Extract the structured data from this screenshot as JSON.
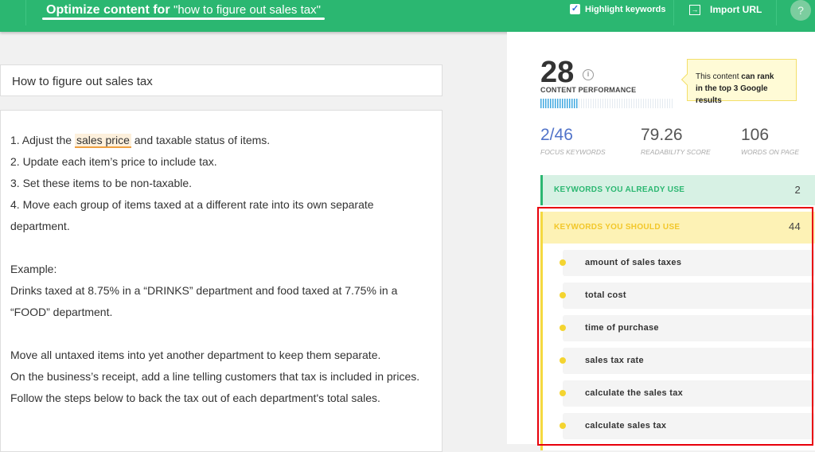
{
  "header": {
    "title_bold": "Optimize content for",
    "query": "\"how to figure out sales tax\"",
    "highlight_label": "Highlight keywords",
    "highlight_checked": true,
    "import_label": "Import URL",
    "help": "?"
  },
  "keyword": "How to figure out sales tax",
  "editor": {
    "lines": [
      {
        "pre": "1. Adjust the ",
        "mark": "sales price",
        "post": " and taxable status of items."
      },
      {
        "pre": "2. Update each item’s price to include tax."
      },
      {
        "pre": "3. Set these items to be non-taxable."
      },
      {
        "pre": "4. Move each group of items taxed at a different rate into its own separate department."
      },
      {
        "pre": ""
      },
      {
        "pre": "Example:"
      },
      {
        "pre": "Drinks taxed at 8.75% in a “DRINKS” department and food taxed at 7.75% in a “FOOD” department."
      },
      {
        "pre": ""
      },
      {
        "pre": "Move all untaxed items into yet another department to keep them separate."
      },
      {
        "pre": "On the business’s receipt, add a line telling customers that tax is included in prices."
      },
      {
        "pre": "Follow the steps below to back the tax out of each department's total sales."
      }
    ]
  },
  "panel": {
    "score": "28",
    "score_percent": 28,
    "score_label": "CONTENT PERFORMANCE",
    "tip_pre": "This content ",
    "tip_bold1": "can rank",
    "tip_bold2": "in the top 3 Google results",
    "stats": [
      {
        "value": "2/46",
        "label": "FOCUS KEYWORDS"
      },
      {
        "value": "79.26",
        "label": "READABILITY SCORE"
      },
      {
        "value": "106",
        "label": "WORDS ON PAGE"
      }
    ],
    "already": {
      "label": "KEYWORDS YOU ALREADY USE",
      "count": "2"
    },
    "should": {
      "label": "KEYWORDS YOU SHOULD USE",
      "count": "44",
      "items": [
        "amount of sales taxes",
        "total cost",
        "time of purchase",
        "sales tax rate",
        "calculate the sales tax",
        "calculate sales tax"
      ]
    }
  },
  "colors": {
    "brand": "#2bb771",
    "highlight_border": "#e8000b"
  }
}
